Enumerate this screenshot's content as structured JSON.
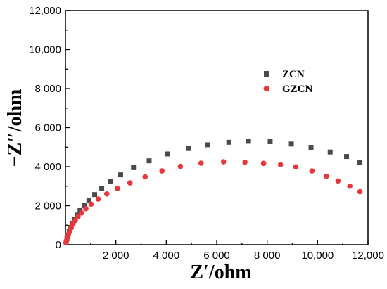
{
  "chart_data": {
    "type": "scatter",
    "xlabel": "Z′/ohm",
    "ylabel": "−Z″/ohm",
    "xlim": [
      0,
      12000
    ],
    "ylim": [
      0,
      12000
    ],
    "x_ticks": [
      "2 000",
      "4 000",
      "6 000",
      "8 000",
      "10,000",
      "12,000"
    ],
    "y_ticks": [
      "0",
      "2 000",
      "4 000",
      "6 000",
      "8 000",
      "10,000",
      "12,000"
    ],
    "legend_position": "right",
    "series": [
      {
        "name": "ZCN",
        "marker": "square",
        "color": "#4a4a4a",
        "x": [
          30,
          60,
          100,
          150,
          210,
          280,
          360,
          460,
          580,
          740,
          930,
          1160,
          1440,
          1780,
          2190,
          2700,
          3320,
          4060,
          4870,
          5650,
          6480,
          7260,
          8120,
          8960,
          9740,
          10500,
          11150,
          11680
        ],
        "y": [
          130,
          300,
          490,
          690,
          890,
          1100,
          1300,
          1520,
          1750,
          2000,
          2280,
          2570,
          2880,
          3240,
          3580,
          3950,
          4300,
          4650,
          4930,
          5120,
          5250,
          5300,
          5280,
          5160,
          4990,
          4750,
          4520,
          4230
        ]
      },
      {
        "name": "GZCN",
        "marker": "circle",
        "color": "#e8373c",
        "x": [
          20,
          45,
          80,
          120,
          170,
          230,
          300,
          390,
          500,
          640,
          810,
          1020,
          1300,
          1640,
          2060,
          2560,
          3160,
          3830,
          4560,
          5380,
          6270,
          7120,
          7860,
          8530,
          9140,
          9780,
          10350,
          10810,
          11280,
          11680
        ],
        "y": [
          100,
          220,
          380,
          540,
          710,
          880,
          1060,
          1240,
          1430,
          1630,
          1850,
          2080,
          2340,
          2600,
          2880,
          3170,
          3480,
          3780,
          4010,
          4180,
          4250,
          4230,
          4170,
          4100,
          3990,
          3780,
          3510,
          3270,
          3000,
          2720
        ]
      }
    ]
  }
}
